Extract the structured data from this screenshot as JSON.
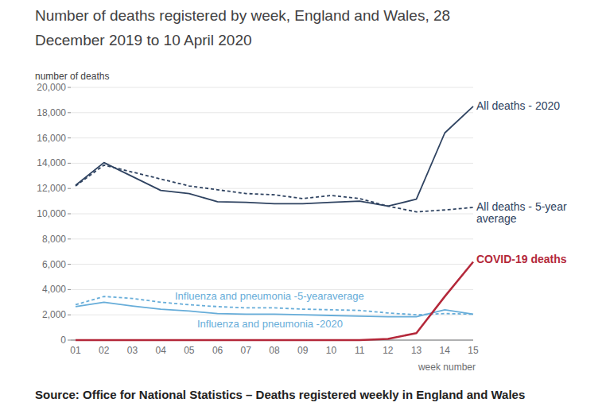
{
  "chart_data": {
    "type": "line",
    "title": "Number of deaths registered by week, England and Wales, 28 December 2019 to 10 April 2020",
    "y_label": "number of deaths",
    "x_label": "week number",
    "source": "Source: Office for National Statistics – Deaths registered weekly in England and Wales",
    "categories": [
      "01",
      "02",
      "03",
      "04",
      "05",
      "06",
      "07",
      "08",
      "09",
      "10",
      "11",
      "12",
      "13",
      "14",
      "15"
    ],
    "series": [
      {
        "name": "All deaths - 2020",
        "color": "#2f4361",
        "line_style": "solid",
        "values": [
          12250,
          14050,
          12950,
          11850,
          11600,
          10950,
          10900,
          10800,
          10800,
          10900,
          11000,
          10600,
          11150,
          16400,
          18500
        ]
      },
      {
        "name": "All deaths - 5-year average",
        "color": "#2f4361",
        "line_style": "dashed",
        "values": [
          12200,
          13850,
          13300,
          12750,
          12200,
          11900,
          11600,
          11500,
          11200,
          11450,
          11200,
          10600,
          10150,
          10300,
          10500
        ]
      },
      {
        "name": "Influenza and pneumonia -5-yearaverage",
        "color": "#67add9",
        "line_style": "dashed",
        "values": [
          2800,
          3450,
          3300,
          3000,
          2800,
          2650,
          2550,
          2550,
          2450,
          2400,
          2350,
          2150,
          2000,
          2100,
          2050
        ]
      },
      {
        "name": "Influenza and pneumonia -2020",
        "color": "#67add9",
        "line_style": "solid",
        "values": [
          2650,
          3000,
          2700,
          2450,
          2300,
          2100,
          2050,
          2050,
          2000,
          1950,
          1900,
          1850,
          1850,
          2400,
          2050
        ]
      },
      {
        "name": "COVID-19 deaths",
        "color": "#b4283a",
        "line_style": "solid",
        "values": [
          0,
          0,
          0,
          0,
          0,
          0,
          0,
          0,
          0,
          0,
          5,
          100,
          550,
          3450,
          6200
        ]
      }
    ],
    "ylim": [
      0,
      20000
    ],
    "yticks": [
      0,
      {
        "value": 2000,
        "label": "2,000"
      },
      {
        "value": 4000,
        "label": "4,000"
      },
      {
        "value": 6000,
        "label": "6,000"
      },
      {
        "value": 8000,
        "label": "8,000"
      },
      {
        "value": 10000,
        "label": "10,000"
      },
      {
        "value": 12000,
        "label": "12,000"
      },
      {
        "value": 14000,
        "label": "14,000"
      },
      {
        "value": 16000,
        "label": "16,000"
      },
      {
        "value": 18000,
        "label": "18,000"
      },
      {
        "value": 20000,
        "label": "20,000"
      }
    ],
    "grid": true
  }
}
